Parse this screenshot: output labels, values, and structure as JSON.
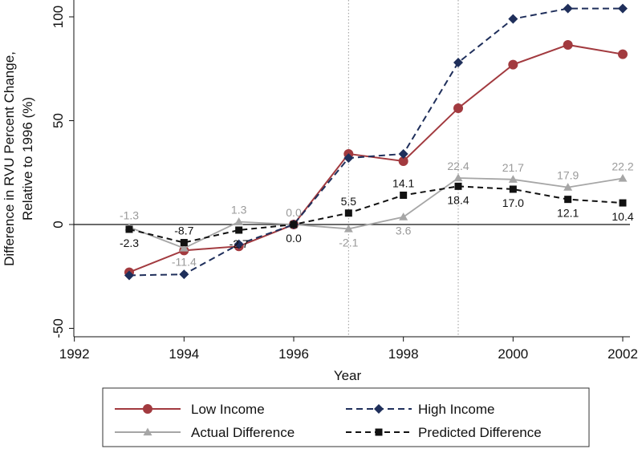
{
  "chart_data": {
    "type": "line",
    "title": "",
    "xlabel": "Year",
    "ylabel_lines": [
      "Difference in RVU Percent Change,",
      "Relative to 1996 (%)"
    ],
    "xlim": [
      1992,
      2002
    ],
    "ylim": [
      -50,
      105
    ],
    "x_ticks": [
      1992,
      1994,
      1996,
      1998,
      2000,
      2002
    ],
    "y_ticks": [
      -50,
      0,
      50,
      100
    ],
    "x_tick_labels": [
      "1992",
      "1994",
      "1996",
      "1998",
      "2000",
      "2002"
    ],
    "y_tick_labels": [
      "-50",
      "0",
      "50",
      "100"
    ],
    "vertical_reference_lines": [
      1997,
      1999
    ],
    "horizontal_reference_line": 0,
    "x": [
      1993,
      1994,
      1995,
      1996,
      1997,
      1998,
      1999,
      2000,
      2001,
      2002
    ],
    "series": [
      {
        "name": "Low Income",
        "key": "low",
        "color": "#a23a3f",
        "dash": "",
        "marker": "circle",
        "values": [
          -23,
          -12.5,
          -10.5,
          0,
          34,
          30.5,
          56,
          77,
          86.5,
          82
        ],
        "labels": null
      },
      {
        "name": "High Income",
        "key": "high",
        "color": "#1f2f5b",
        "dash": "8 5",
        "marker": "diamond",
        "values": [
          -24.5,
          -24,
          -9.5,
          0,
          32,
          34,
          78,
          99,
          104,
          104
        ],
        "labels": null
      },
      {
        "name": "Actual Difference",
        "key": "actual",
        "color": "#a6a6a6",
        "dash": "",
        "marker": "triangle",
        "values": [
          -1.3,
          -11.4,
          1.3,
          0.0,
          -2.1,
          3.6,
          22.4,
          21.7,
          17.9,
          22.2
        ],
        "labels": [
          "-1.3",
          "-11.4",
          "1.3",
          "0.0",
          "-2.1",
          "3.6",
          "22.4",
          "21.7",
          "17.9",
          "22.2"
        ]
      },
      {
        "name": "Predicted Difference",
        "key": "pred",
        "color": "#111111",
        "dash": "7 5",
        "marker": "square",
        "values": [
          -2.3,
          -8.7,
          -2.7,
          0.0,
          5.5,
          14.1,
          18.4,
          17.0,
          12.1,
          10.4
        ],
        "labels": [
          "-2.3",
          "-8.7",
          "-2.7",
          "0.0",
          "5.5",
          "14.1",
          "18.4",
          "17.0",
          "12.1",
          "10.4"
        ]
      }
    ],
    "legend": {
      "placement": "bottom",
      "entries": [
        "Low Income",
        "High Income",
        "Actual Difference",
        "Predicted Difference"
      ]
    }
  }
}
